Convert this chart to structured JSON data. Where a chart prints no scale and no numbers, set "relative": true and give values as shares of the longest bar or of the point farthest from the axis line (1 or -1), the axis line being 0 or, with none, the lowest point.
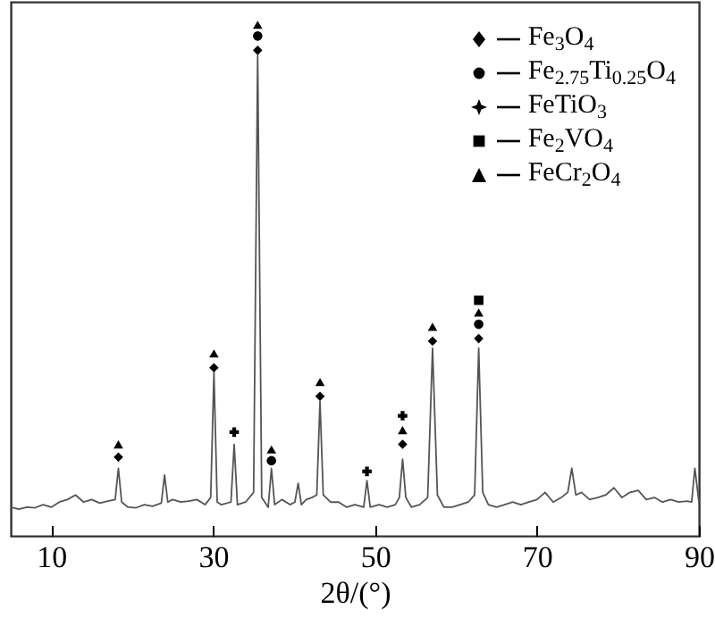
{
  "chart_data": {
    "type": "line",
    "relative": true,
    "xlabel": "2θ/(°)",
    "xlim": [
      5,
      90
    ],
    "xticks": [
      10,
      30,
      50,
      70,
      90
    ],
    "tick_labels": "x",
    "grid": false,
    "legend": "top right",
    "series": [
      {
        "color": "#555555",
        "x": [
          5,
          6,
          7,
          8,
          9,
          10,
          11,
          12,
          13,
          14,
          15,
          16,
          17,
          17.9,
          18.3,
          18.7,
          19.5,
          20.5,
          21.5,
          22.5,
          23.6,
          24.0,
          24.4,
          25,
          26,
          27,
          28,
          29,
          29.7,
          30.1,
          30.5,
          31,
          32.2,
          32.6,
          33,
          34,
          35.0,
          35.5,
          36.0,
          36.8,
          37.2,
          37.6,
          38.5,
          39.5,
          40.1,
          40.5,
          40.9,
          41.5,
          42.2,
          42.8,
          43.2,
          43.6,
          44.5,
          45.5,
          46.5,
          47.5,
          48.6,
          49.0,
          49.4,
          50.5,
          51.5,
          52.5,
          53.0,
          53.4,
          53.8,
          54.5,
          55.5,
          56.5,
          57.1,
          57.7,
          58.5,
          59.5,
          60.5,
          61.5,
          62.3,
          62.8,
          63.3,
          64,
          65,
          66,
          67,
          68,
          69,
          70,
          71,
          72,
          73,
          73.8,
          74.3,
          74.8,
          75.5,
          76.5,
          77.5,
          78.5,
          79.5,
          80.5,
          81.5,
          82.5,
          83.5,
          84.5,
          85.5,
          86.5,
          87.5,
          88.5,
          89.1,
          89.5,
          90
        ],
        "values": [
          0.056,
          0.052,
          0.056,
          0.055,
          0.061,
          0.056,
          0.066,
          0.071,
          0.08,
          0.066,
          0.071,
          0.064,
          0.068,
          0.071,
          0.132,
          0.066,
          0.056,
          0.055,
          0.061,
          0.058,
          0.064,
          0.119,
          0.066,
          0.071,
          0.066,
          0.068,
          0.071,
          0.061,
          0.075,
          0.32,
          0.066,
          0.061,
          0.066,
          0.179,
          0.061,
          0.066,
          0.085,
          0.94,
          0.075,
          0.056,
          0.132,
          0.061,
          0.071,
          0.061,
          0.066,
          0.103,
          0.061,
          0.071,
          0.075,
          0.08,
          0.263,
          0.08,
          0.066,
          0.066,
          0.056,
          0.061,
          0.056,
          0.108,
          0.056,
          0.061,
          0.056,
          0.061,
          0.075,
          0.15,
          0.075,
          0.056,
          0.061,
          0.075,
          0.367,
          0.08,
          0.056,
          0.056,
          0.061,
          0.066,
          0.08,
          0.367,
          0.085,
          0.061,
          0.056,
          0.061,
          0.066,
          0.061,
          0.066,
          0.071,
          0.085,
          0.066,
          0.075,
          0.085,
          0.132,
          0.08,
          0.085,
          0.071,
          0.075,
          0.08,
          0.094,
          0.075,
          0.085,
          0.089,
          0.071,
          0.075,
          0.066,
          0.071,
          0.066,
          0.068,
          0.066,
          0.132,
          0.066
        ]
      },
      {
        "type": "scatter",
        "name": "Fe$_{3}$O$_{4}$",
        "marker": "diamond",
        "color": "#000000",
        "x": [
          18.3,
          30.1,
          35.5,
          43.2,
          53.4,
          57.1,
          62.8
        ],
        "values": [
          0.154,
          0.329,
          0.95,
          0.273,
          0.179,
          0.381,
          0.386
        ]
      },
      {
        "type": "scatter",
        "name": "Fe$_{2.75}$Ti$_{0.25}$O$_{4}$",
        "marker": "circle",
        "color": "#000000",
        "x": [
          35.5,
          37.2,
          62.8
        ],
        "values": [
          0.978,
          0.147,
          0.414
        ]
      },
      {
        "type": "scatter",
        "name": "FeTiO$_{3}$",
        "marker": "cross",
        "color": "#000000",
        "x": [
          32.6,
          49.0,
          53.4
        ],
        "values": [
          0.203,
          0.126,
          0.235
        ]
      },
      {
        "type": "scatter",
        "name": "Fe$_{2}$VO$_{4}$",
        "marker": "square",
        "color": "#000000",
        "x": [
          62.8
        ],
        "values": [
          0.461
        ]
      },
      {
        "type": "scatter",
        "name": "FeCr$_{2}$O$_{4}$",
        "marker": "triangle",
        "color": "#000000",
        "x": [
          18.3,
          30.1,
          35.5,
          37.2,
          43.2,
          53.4,
          57.1,
          62.8
        ],
        "values": [
          0.179,
          0.357,
          1,
          0.169,
          0.301,
          0.207,
          0.409,
          0.437
        ]
      }
    ]
  }
}
